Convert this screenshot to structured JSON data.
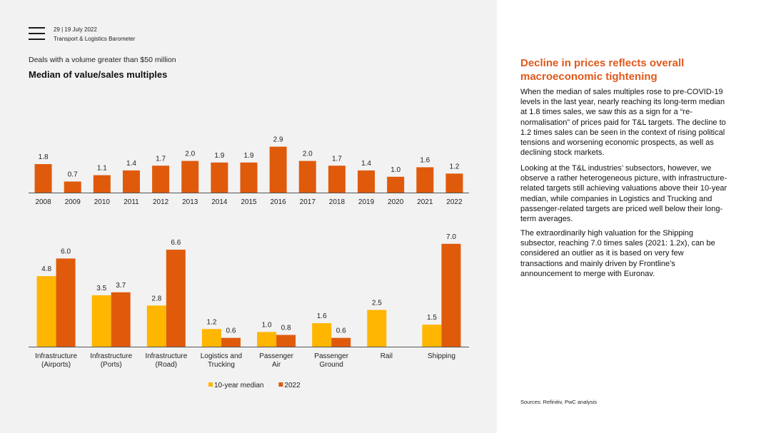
{
  "header": {
    "page_info": "29  |  19 July 2022",
    "report_name": "Transport & Logistics Barometer"
  },
  "chart_subtitle": "Deals with a volume greater than $50 million",
  "chart_title": "Median of value/sales multiples",
  "colors": {
    "bar_2022": "#e05a0c",
    "bar_median": "#ffb600",
    "heading": "#e0591d"
  },
  "chart_data": [
    {
      "type": "bar",
      "title": "Median of value/sales multiples",
      "categories": [
        "2008",
        "2009",
        "2010",
        "2011",
        "2012",
        "2013",
        "2014",
        "2015",
        "2016",
        "2017",
        "2018",
        "2019",
        "2020",
        "2021",
        "2022"
      ],
      "values": [
        1.8,
        0.7,
        1.1,
        1.4,
        1.7,
        2.0,
        1.9,
        1.9,
        2.9,
        2.0,
        1.7,
        1.4,
        1.0,
        1.6,
        1.2
      ],
      "value_labels": [
        "1.8",
        "0.7",
        "1.1",
        "1.4",
        "1.7",
        "2.0",
        "1.9",
        "1.9",
        "2.9",
        "2.0",
        "1.7",
        "1.4",
        "1.0",
        "1.6",
        "1.2"
      ],
      "ylim": [
        0,
        3.1
      ],
      "grid": false
    },
    {
      "type": "bar",
      "categories": [
        [
          "Infrastructure",
          "(Airports)"
        ],
        [
          "Infrastructure",
          "(Ports)"
        ],
        [
          "Infrastructure",
          "(Road)"
        ],
        [
          "Logistics and",
          "Trucking"
        ],
        [
          "Passenger",
          "Air"
        ],
        [
          "Passenger",
          "Ground"
        ],
        [
          "Rail"
        ],
        [
          "Shipping"
        ]
      ],
      "series": [
        {
          "name": "10-year median",
          "color": "#ffb600",
          "values": [
            4.8,
            3.5,
            2.8,
            1.2,
            1.0,
            1.6,
            2.5,
            1.5
          ],
          "value_labels": [
            "4.8",
            "3.5",
            "2.8",
            "1.2",
            "1.0",
            "1.6",
            "2.5",
            "1.5"
          ]
        },
        {
          "name": "2022",
          "color": "#e05a0c",
          "values": [
            6.0,
            3.7,
            6.6,
            0.6,
            0.8,
            0.6,
            null,
            7.0
          ],
          "value_labels": [
            "6.0",
            "3.7",
            "6.6",
            "0.6",
            "0.8",
            "0.6",
            "",
            "7.0"
          ]
        }
      ],
      "ylim": [
        0,
        7.5
      ],
      "legend_position": "bottom",
      "grid": false
    }
  ],
  "right_panel": {
    "heading": [
      "Decline in prices reflects overall",
      "macroeconomic tightening"
    ],
    "paragraphs": [
      [
        "When the median of sales multiples rose to pre-COVID-19",
        "levels in the last year, nearly reaching its long-term median",
        "at 1.8 times sales, we saw this as a sign for a “re-",
        "normalisation” of prices paid for T&L targets. The decline to",
        "1.2 times sales can be seen in the context of rising political",
        "tensions and worsening economic prospects, as well as",
        "declining stock markets."
      ],
      [
        "Looking at the T&L industries’ subsectors, however, we",
        "observe a rather heterogeneous picture, with infrastructure-",
        "related targets still achieving valuations above their 10-year",
        "median, while companies in Logistics and Trucking and",
        "passenger-related targets are priced well below their long-",
        "term averages."
      ],
      [
        "The extraordinarily high valuation for the Shipping",
        "subsector, reaching 7.0 times sales (2021: 1.2x), can be",
        "considered an outlier as it is based on very few",
        "transactions and mainly driven by Frontline’s",
        "announcement to merge with Euronav."
      ]
    ],
    "sources": "Sources:  Refinitiv, PwC analysis"
  }
}
